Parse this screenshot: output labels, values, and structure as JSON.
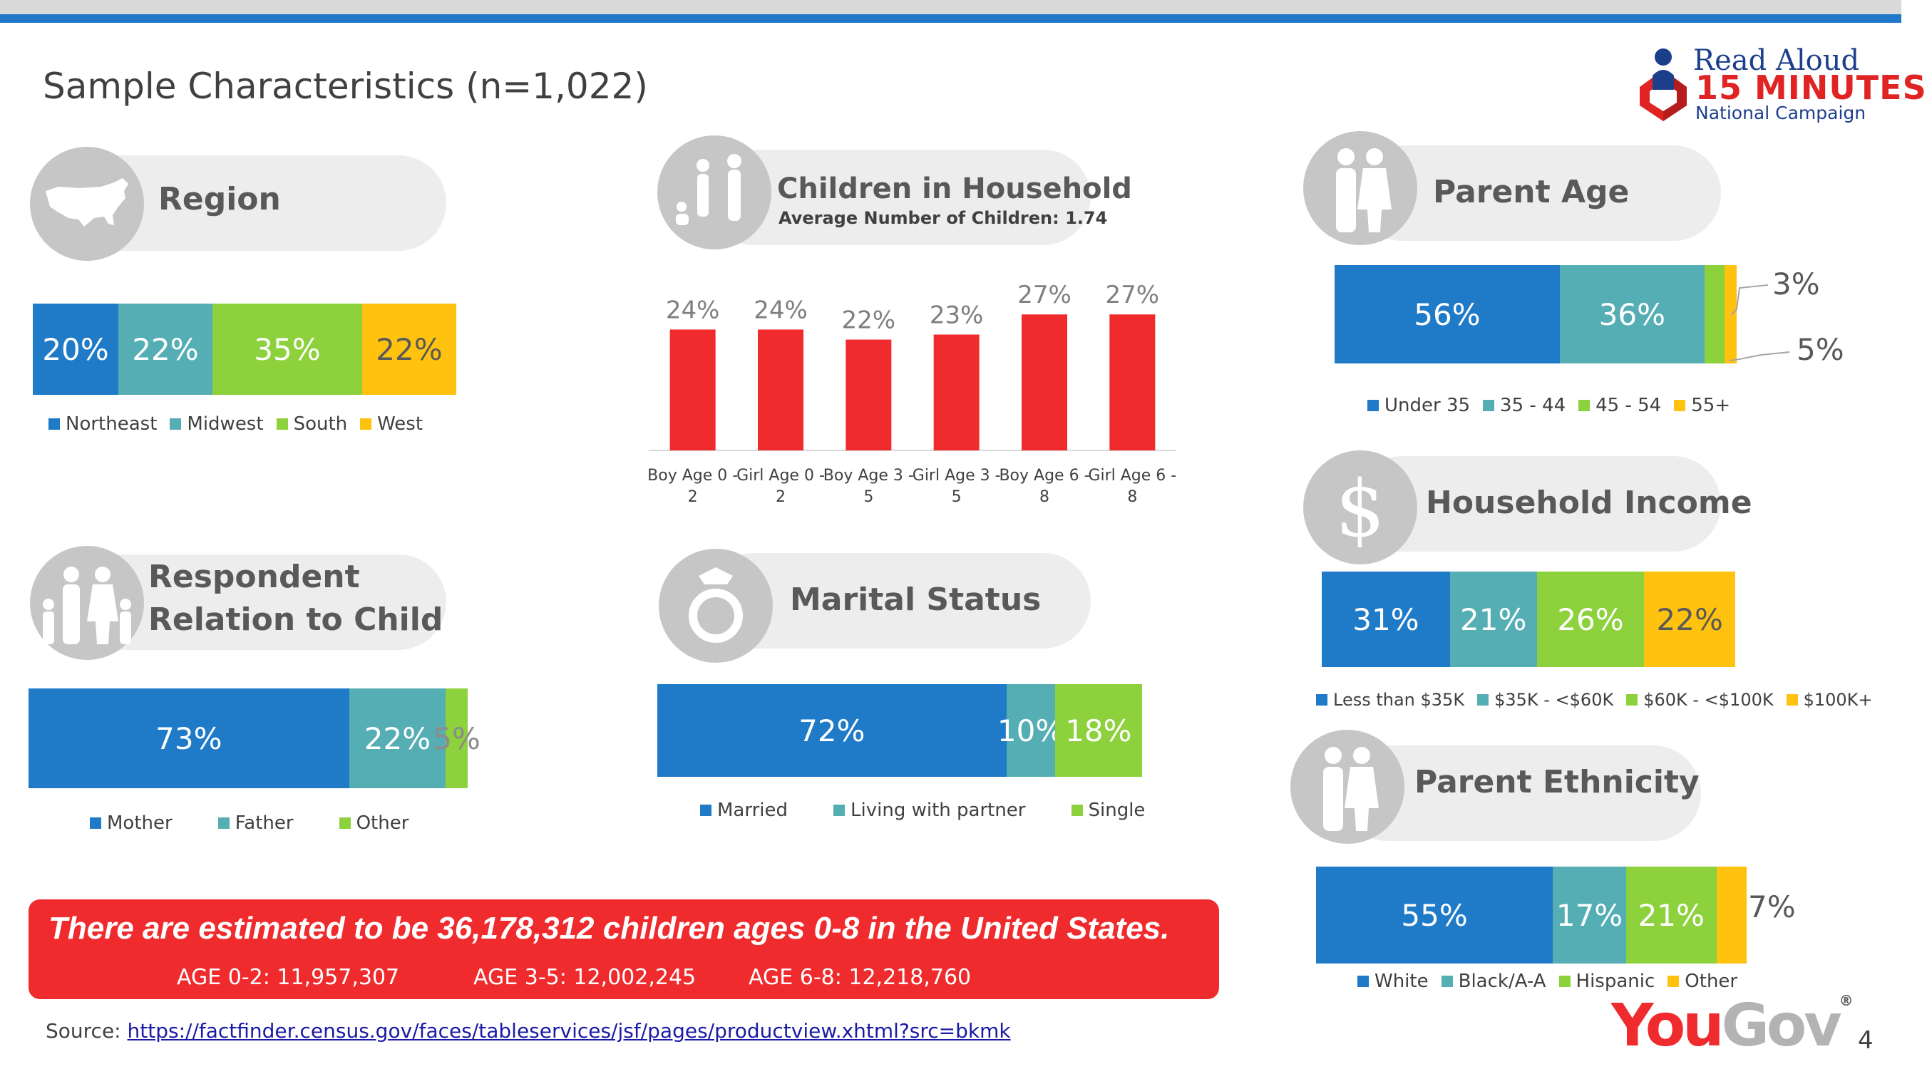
{
  "page": {
    "title": "Sample Characteristics (n=1,022)",
    "page_number": "4"
  },
  "logos": {
    "read_aloud": {
      "line1": "Read Aloud",
      "line2": "15 MINUTES",
      "line3": "National Campaign"
    },
    "yougov": {
      "you": "You",
      "gov": "Gov",
      "mark": "®"
    }
  },
  "colors": {
    "blue": "#1f7ac8",
    "teal": "#55aeb3",
    "green": "#8dd13c",
    "yellow": "#ffc20e",
    "red": "#ef2b2d",
    "icon_grey": "#c6c6c6",
    "pill": "#ededed"
  },
  "sections": {
    "region": {
      "title": "Region",
      "icon": "usa-map-icon"
    },
    "children": {
      "title": "Children in Household",
      "subtitle": "Average Number of Children: 1.74",
      "icon": "family-silhouette-icon"
    },
    "parent_age": {
      "title": "Parent Age",
      "icon": "couple-icon"
    },
    "income": {
      "title": "Household Income",
      "icon": "dollar-icon"
    },
    "relation": {
      "title_line1": "Respondent",
      "title_line2": "Relation to Child",
      "icon": "family-group-icon"
    },
    "marital": {
      "title": "Marital Status",
      "icon": "ring-icon"
    },
    "ethnicity": {
      "title": "Parent Ethnicity",
      "icon": "couple-icon"
    }
  },
  "chart_data": [
    {
      "id": "region",
      "type": "bar",
      "orientation": "stacked-horizontal",
      "series": [
        {
          "name": "Northeast",
          "value": 20,
          "label": "20%",
          "color": "#1f7ac8"
        },
        {
          "name": "Midwest",
          "value": 22,
          "label": "22%",
          "color": "#55aeb3"
        },
        {
          "name": "South",
          "value": 35,
          "label": "35%",
          "color": "#8dd13c"
        },
        {
          "name": "West",
          "value": 22,
          "label": "22%",
          "color": "#ffc20e"
        }
      ]
    },
    {
      "id": "children",
      "type": "bar",
      "categories": [
        "Boy Age 0 - 2",
        "Girl Age 0 - 2",
        "Boy Age 3 - 5",
        "Girl Age 3 - 5",
        "Boy Age 6 - 8",
        "Girl Age 6 - 8"
      ],
      "category_lines": [
        [
          "Boy Age 0 -",
          "2"
        ],
        [
          "Girl Age 0 -",
          "2"
        ],
        [
          "Boy Age 3 -",
          "5"
        ],
        [
          "Girl Age 3 -",
          "5"
        ],
        [
          "Boy Age 6 -",
          "8"
        ],
        [
          "Girl Age 6 -",
          "8"
        ]
      ],
      "values": [
        24,
        24,
        22,
        23,
        27,
        27
      ],
      "labels": [
        "24%",
        "24%",
        "22%",
        "23%",
        "27%",
        "27%"
      ],
      "color": "#ef2b2d",
      "ylim": [
        0,
        30
      ]
    },
    {
      "id": "parent_age",
      "type": "bar",
      "orientation": "stacked-horizontal",
      "series": [
        {
          "name": "Under 35",
          "value": 56,
          "label": "56%",
          "color": "#1f7ac8"
        },
        {
          "name": "35 - 44",
          "value": 36,
          "label": "36%",
          "color": "#55aeb3"
        },
        {
          "name": "45 - 54",
          "value": 5,
          "label": "5%",
          "color": "#8dd13c"
        },
        {
          "name": "55+",
          "value": 3,
          "label": "3%",
          "color": "#ffc20e"
        }
      ]
    },
    {
      "id": "income",
      "type": "bar",
      "orientation": "stacked-horizontal",
      "series": [
        {
          "name": "Less than $35K",
          "value": 31,
          "label": "31%",
          "color": "#1f7ac8"
        },
        {
          "name": "$35K - <$60K",
          "value": 21,
          "label": "21%",
          "color": "#55aeb3"
        },
        {
          "name": "$60K - <$100K",
          "value": 26,
          "label": "26%",
          "color": "#8dd13c"
        },
        {
          "name": "$100K+",
          "value": 22,
          "label": "22%",
          "color": "#ffc20e"
        }
      ]
    },
    {
      "id": "relation",
      "type": "bar",
      "orientation": "stacked-horizontal",
      "series": [
        {
          "name": "Mother",
          "value": 73,
          "label": "73%",
          "color": "#1f7ac8"
        },
        {
          "name": "Father",
          "value": 22,
          "label": "22%",
          "color": "#55aeb3"
        },
        {
          "name": "Other",
          "value": 5,
          "label": "5%",
          "color": "#8dd13c"
        }
      ]
    },
    {
      "id": "marital",
      "type": "bar",
      "orientation": "stacked-horizontal",
      "series": [
        {
          "name": "Married",
          "value": 72,
          "label": "72%",
          "color": "#1f7ac8"
        },
        {
          "name": "Living with partner",
          "value": 10,
          "label": "10%",
          "color": "#55aeb3"
        },
        {
          "name": "Single",
          "value": 18,
          "label": "18%",
          "color": "#8dd13c"
        }
      ]
    },
    {
      "id": "ethnicity",
      "type": "bar",
      "orientation": "stacked-horizontal",
      "series": [
        {
          "name": "White",
          "value": 55,
          "label": "55%",
          "color": "#1f7ac8"
        },
        {
          "name": "Black/A-A",
          "value": 17,
          "label": "17%",
          "color": "#55aeb3"
        },
        {
          "name": "Hispanic",
          "value": 21,
          "label": "21%",
          "color": "#8dd13c"
        },
        {
          "name": "Other",
          "value": 7,
          "label": "7%",
          "color": "#ffc20e"
        }
      ]
    }
  ],
  "banner": {
    "text": "There are estimated to be 36,178,312 children ages 0-8 in the United States.",
    "age_0_2": "AGE 0-2:  11,957,307",
    "age_3_5": "AGE 3-5:  12,002,245",
    "age_6_8": "AGE 6-8:  12,218,760"
  },
  "source": {
    "label": "Source: ",
    "url": "https://factfinder.census.gov/faces/tableservices/jsf/pages/productview.xhtml?src=bkmk"
  }
}
